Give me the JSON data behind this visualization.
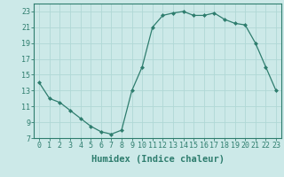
{
  "x": [
    0,
    1,
    2,
    3,
    4,
    5,
    6,
    7,
    8,
    9,
    10,
    11,
    12,
    13,
    14,
    15,
    16,
    17,
    18,
    19,
    20,
    21,
    22,
    23
  ],
  "y": [
    14.0,
    12.0,
    11.5,
    10.5,
    9.5,
    8.5,
    7.8,
    7.5,
    8.0,
    13.0,
    16.0,
    21.0,
    22.5,
    22.8,
    23.0,
    22.5,
    22.5,
    22.8,
    22.0,
    21.5,
    21.3,
    19.0,
    16.0,
    13.0
  ],
  "line_color": "#2e7d6e",
  "marker": "D",
  "marker_size": 2,
  "bg_color": "#cce9e8",
  "grid_color": "#b0d8d6",
  "tick_color": "#2e7d6e",
  "xlabel": "Humidex (Indice chaleur)",
  "xlim": [
    -0.5,
    23.5
  ],
  "ylim": [
    7,
    24
  ],
  "yticks": [
    7,
    9,
    11,
    13,
    15,
    17,
    19,
    21,
    23
  ],
  "xticks": [
    0,
    1,
    2,
    3,
    4,
    5,
    6,
    7,
    8,
    9,
    10,
    11,
    12,
    13,
    14,
    15,
    16,
    17,
    18,
    19,
    20,
    21,
    22,
    23
  ],
  "font_size": 6.0,
  "label_font_size": 7.5
}
